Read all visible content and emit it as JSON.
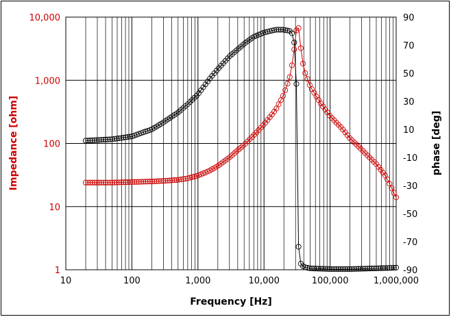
{
  "chart_data": {
    "type": "scatter",
    "xlabel": "Frequency [Hz]",
    "ylabel_left": "Impedance [ohm]",
    "ylabel_right": "phase [deg]",
    "x_scale": "log",
    "y_left_scale": "log",
    "xlim": [
      10,
      1000000
    ],
    "ylim_left": [
      1,
      10000
    ],
    "ylim_right": [
      -90,
      90
    ],
    "x_ticks": [
      {
        "v": 10,
        "label": "10"
      },
      {
        "v": 100,
        "label": "100"
      },
      {
        "v": 1000,
        "label": "1,000"
      },
      {
        "v": 10000,
        "label": "10,000"
      },
      {
        "v": 100000,
        "label": "100,000"
      },
      {
        "v": 1000000,
        "label": "1,000,000"
      }
    ],
    "y_left_ticks": [
      {
        "v": 1,
        "label": "1"
      },
      {
        "v": 10,
        "label": "10"
      },
      {
        "v": 100,
        "label": "100"
      },
      {
        "v": 1000,
        "label": "1,000"
      },
      {
        "v": 10000,
        "label": "10,000"
      }
    ],
    "y_right_ticks": [
      {
        "v": 90,
        "label": "90"
      },
      {
        "v": 70,
        "label": "70"
      },
      {
        "v": 50,
        "label": "50"
      },
      {
        "v": 30,
        "label": "30"
      },
      {
        "v": 10,
        "label": "10"
      },
      {
        "v": -10,
        "label": "-10"
      },
      {
        "v": -30,
        "label": "-30"
      },
      {
        "v": -50,
        "label": "-50"
      },
      {
        "v": -70,
        "label": "-70"
      },
      {
        "v": -90,
        "label": "-90"
      }
    ],
    "grid": true,
    "colors": {
      "impedance": "#cc0000",
      "phase": "#000000",
      "grid": "#000000"
    },
    "series": [
      {
        "axis": "left",
        "color": "#cc0000",
        "points": [
          [
            20,
            24
          ],
          [
            50,
            24
          ],
          [
            100,
            24.5
          ],
          [
            200,
            25
          ],
          [
            300,
            25.5
          ],
          [
            500,
            26.5
          ],
          [
            700,
            28
          ],
          [
            1000,
            31
          ],
          [
            1500,
            37
          ],
          [
            2000,
            44
          ],
          [
            3000,
            60
          ],
          [
            4000,
            78
          ],
          [
            5000,
            95
          ],
          [
            7000,
            135
          ],
          [
            10000,
            200
          ],
          [
            15000,
            340
          ],
          [
            20000,
            600
          ],
          [
            25000,
            1200
          ],
          [
            28000,
            2500
          ],
          [
            30000,
            5000
          ],
          [
            32000,
            8000
          ],
          [
            33000,
            7500
          ],
          [
            35000,
            4000
          ],
          [
            40000,
            1500
          ],
          [
            50000,
            800
          ],
          [
            70000,
            450
          ],
          [
            100000,
            270
          ],
          [
            150000,
            175
          ],
          [
            200000,
            120
          ],
          [
            300000,
            80
          ],
          [
            500000,
            47
          ],
          [
            700000,
            30
          ],
          [
            1000000,
            14
          ]
        ]
      },
      {
        "axis": "right",
        "color": "#000000",
        "points": [
          [
            20,
            2
          ],
          [
            50,
            3
          ],
          [
            100,
            5
          ],
          [
            150,
            8
          ],
          [
            200,
            10
          ],
          [
            300,
            15
          ],
          [
            400,
            19
          ],
          [
            500,
            22
          ],
          [
            700,
            28
          ],
          [
            1000,
            35
          ],
          [
            1500,
            46
          ],
          [
            2000,
            53
          ],
          [
            3000,
            62
          ],
          [
            5000,
            71
          ],
          [
            7000,
            76
          ],
          [
            10000,
            79
          ],
          [
            15000,
            81
          ],
          [
            20000,
            81
          ],
          [
            25000,
            80
          ],
          [
            28000,
            77
          ],
          [
            30000,
            60
          ],
          [
            31000,
            40
          ],
          [
            32000,
            -10
          ],
          [
            33000,
            -70
          ],
          [
            34000,
            -80
          ],
          [
            35000,
            -85
          ],
          [
            40000,
            -88
          ],
          [
            50000,
            -89
          ],
          [
            100000,
            -89.5
          ],
          [
            200000,
            -89.5
          ],
          [
            500000,
            -89
          ],
          [
            1000000,
            -88.5
          ]
        ]
      }
    ]
  }
}
